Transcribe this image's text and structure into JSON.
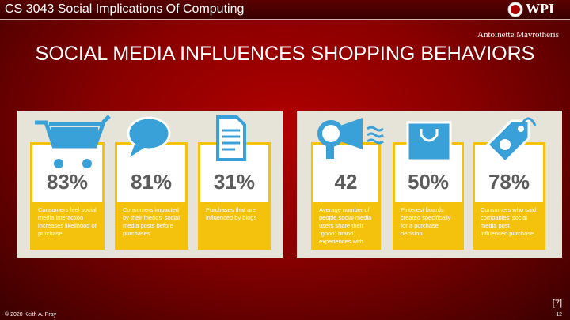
{
  "header": {
    "course": "CS 3043 Social Implications Of Computing",
    "logo": "WPI",
    "author": "Antoinette Mavrotheris",
    "title": "SOCIAL MEDIA INFLUENCES SHOPPING BEHAVIORS"
  },
  "panels": [
    {
      "cards": [
        {
          "stat": "83%",
          "text": "Consumers feel social media interaction increases likelihood of purchase"
        },
        {
          "stat": "81%",
          "text": "Consumers impacted by their friends' social media posts before purchases"
        },
        {
          "stat": "31%",
          "text": "Purchases that are influenced by blogs"
        }
      ]
    },
    {
      "cards": [
        {
          "stat": "42",
          "text": "Average number of people social media users share their \"good\" brand experiences with"
        },
        {
          "stat": "50%",
          "text": "Pinterest boards created specifically for a purchase decision"
        },
        {
          "stat": "78%",
          "text": "Consumers who said companies' social media post influenced purchase"
        }
      ]
    }
  ],
  "footer": {
    "citation": "[7]",
    "copyright": "© 2020 Keith A. Pray",
    "page": "12"
  }
}
